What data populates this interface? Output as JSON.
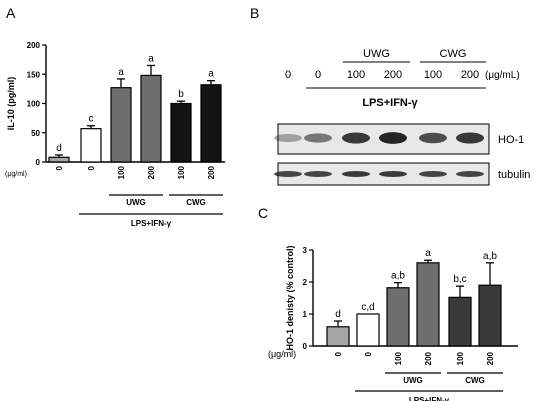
{
  "panels": {
    "a_label": "A",
    "b_label": "B",
    "c_label": "C"
  },
  "chart_data": [
    {
      "panel": "A",
      "type": "bar",
      "ylabel": "IL-10 (pg/ml)",
      "ylim": [
        0,
        200
      ],
      "yticks": [
        "0",
        "50",
        "100",
        "150",
        "200"
      ],
      "unit_label": "(μg/ml)",
      "categories": [
        "0",
        "0",
        "100",
        "200",
        "100",
        "200"
      ],
      "values": [
        8,
        57,
        127,
        148,
        100,
        132
      ],
      "errors": [
        4,
        5,
        15,
        17,
        4,
        7
      ],
      "sig_letters": [
        "d",
        "c",
        "a",
        "a",
        "b",
        "a"
      ],
      "bar_colors": [
        "#a6a6a6",
        "#ffffff",
        "#6e6e6e",
        "#6e6e6e",
        "#141414",
        "#141414"
      ],
      "group_labels": [
        "UWG",
        "CWG"
      ],
      "treatment_label": "LPS+IFN-γ",
      "grid": false
    },
    {
      "panel": "C",
      "type": "bar",
      "ylabel": "HO-1 denisty (% control)",
      "ylim": [
        0,
        3
      ],
      "yticks": [
        "0",
        "1",
        "2",
        "3"
      ],
      "unit_label": "(μg/ml)",
      "categories": [
        "0",
        "0",
        "100",
        "200",
        "100",
        "200"
      ],
      "values": [
        0.6,
        1.0,
        1.82,
        2.6,
        1.52,
        1.9
      ],
      "errors": [
        0.18,
        0.0,
        0.16,
        0.08,
        0.35,
        0.7
      ],
      "sig_letters": [
        "d",
        "c,d",
        "a,b",
        "a",
        "b,c",
        "a,b"
      ],
      "bar_colors": [
        "#a6a6a6",
        "#ffffff",
        "#6e6e6e",
        "#6e6e6e",
        "#3a3a3a",
        "#3a3a3a"
      ],
      "group_labels": [
        "UWG",
        "CWG"
      ],
      "treatment_label": "LPS+IFN-γ",
      "grid": false
    }
  ],
  "blot": {
    "group_labels": [
      "UWG",
      "CWG"
    ],
    "lane_labels": [
      "0",
      "0",
      "100",
      "200",
      "100",
      "200"
    ],
    "unit_label": "(μg/mL)",
    "treatment_label": "LPS+IFN-γ",
    "ho1_label": "HO-1",
    "tubulin_label": "tubulin",
    "ho1_intensity": [
      0.35,
      0.55,
      0.85,
      0.95,
      0.75,
      0.85
    ],
    "tubulin_intensity": [
      0.8,
      0.8,
      0.85,
      0.85,
      0.8,
      0.8
    ]
  },
  "colors": {
    "axis": "#000000",
    "blot_background": "#e8e8e8",
    "band": "#1a1a1a"
  }
}
